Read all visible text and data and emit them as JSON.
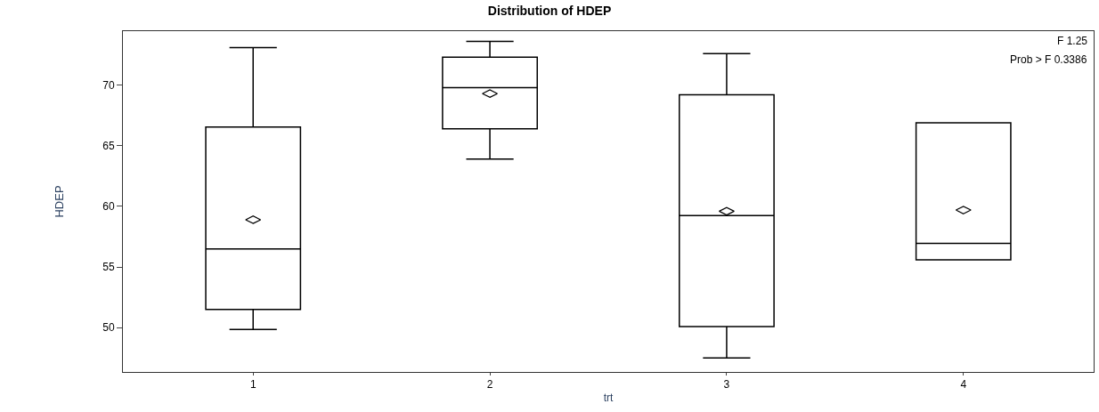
{
  "chart_data": {
    "type": "box",
    "title": "Distribution of HDEP",
    "xlabel": "trt",
    "ylabel": "HDEP",
    "categories": [
      "1",
      "2",
      "3",
      "4"
    ],
    "boxes": [
      {
        "low": 49.85,
        "q1": 51.5,
        "median": 56.5,
        "q3": 66.55,
        "high": 73.1,
        "mean": 58.9
      },
      {
        "low": 63.9,
        "q1": 66.4,
        "median": 69.8,
        "q3": 72.3,
        "high": 73.6,
        "mean": 69.3
      },
      {
        "low": 47.5,
        "q1": 50.1,
        "median": 59.25,
        "q3": 69.2,
        "high": 72.6,
        "mean": 59.6
      },
      {
        "low": 55.6,
        "q1": 55.6,
        "median": 56.95,
        "q3": 66.9,
        "high": 66.9,
        "mean": 59.7
      }
    ],
    "color": "#000000",
    "marker": "diamond",
    "ylim": [
      46.35,
      74.45
    ],
    "yticks": [
      50,
      55,
      60,
      65,
      70
    ],
    "annotations": [
      "F 1.25",
      "Prob > F 0.3386"
    ]
  }
}
